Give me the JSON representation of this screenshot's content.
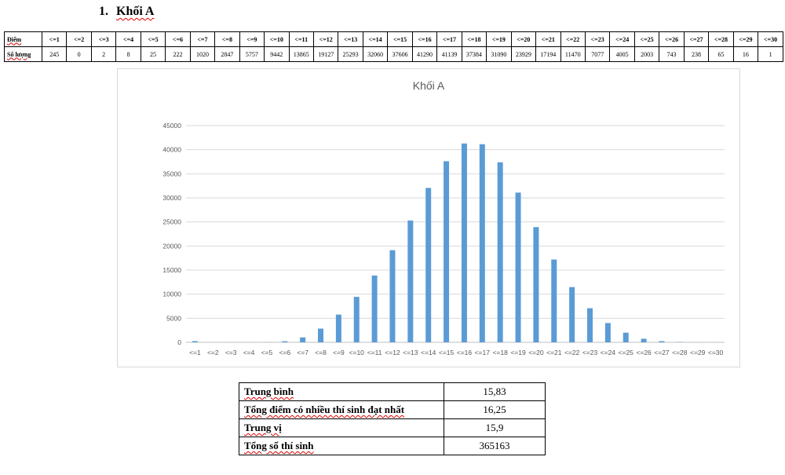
{
  "heading": {
    "number": "1.",
    "text": "Khối A"
  },
  "table": {
    "header_label": "Điểm",
    "count_label": "Số lượng",
    "columns": [
      "<=1",
      "<=2",
      "<=3",
      "<=4",
      "<=5",
      "<=6",
      "<=7",
      "<=8",
      "<=9",
      "<=10",
      "<=11",
      "<=12",
      "<=13",
      "<=14",
      "<=15",
      "<=16",
      "<=17",
      "<=18",
      "<=19",
      "<=20",
      "<=21",
      "<=22",
      "<=23",
      "<=24",
      "<=25",
      "<=26",
      "<=27",
      "<=28",
      "<=29",
      "<=30"
    ],
    "counts": [
      "245",
      "0",
      "2",
      "8",
      "25",
      "222",
      "1020",
      "2847",
      "5757",
      "9442",
      "13865",
      "19127",
      "25293",
      "32060",
      "37606",
      "41290",
      "41139",
      "37384",
      "31090",
      "23929",
      "17194",
      "11470",
      "7077",
      "4005",
      "2003",
      "743",
      "238",
      "65",
      "16",
      "1"
    ]
  },
  "chart_data": {
    "type": "bar",
    "title": "Khối A",
    "categories": [
      "<=1",
      "<=2",
      "<=3",
      "<=4",
      "<=5",
      "<=6",
      "<=7",
      "<=8",
      "<=9",
      "<=10",
      "<=11",
      "<=12",
      "<=13",
      "<=14",
      "<=15",
      "<=16",
      "<=17",
      "<=18",
      "<=19",
      "<=20",
      "<=21",
      "<=22",
      "<=23",
      "<=24",
      "<=25",
      "<=26",
      "<=27",
      "<=28",
      "<=29",
      "<=30"
    ],
    "values": [
      245,
      0,
      2,
      8,
      25,
      222,
      1020,
      2847,
      5757,
      9442,
      13865,
      19127,
      25293,
      32060,
      37606,
      41290,
      41139,
      37384,
      31090,
      23929,
      17194,
      11470,
      7077,
      4005,
      2003,
      743,
      238,
      65,
      16,
      1
    ],
    "yticks": [
      0,
      5000,
      10000,
      15000,
      20000,
      25000,
      30000,
      35000,
      40000,
      45000
    ],
    "ylim": [
      0,
      45000
    ],
    "grid": true,
    "bar_color": "#5b9bd5"
  },
  "stats": [
    {
      "label": "Trung bình",
      "value": "15,83"
    },
    {
      "label": "Tổng điểm có nhiều thí sinh đạt nhất",
      "value": "16,25"
    },
    {
      "label": "Trung vị",
      "value": "15,9"
    },
    {
      "label": "Tổng số thí sinh",
      "value": "365163"
    }
  ]
}
